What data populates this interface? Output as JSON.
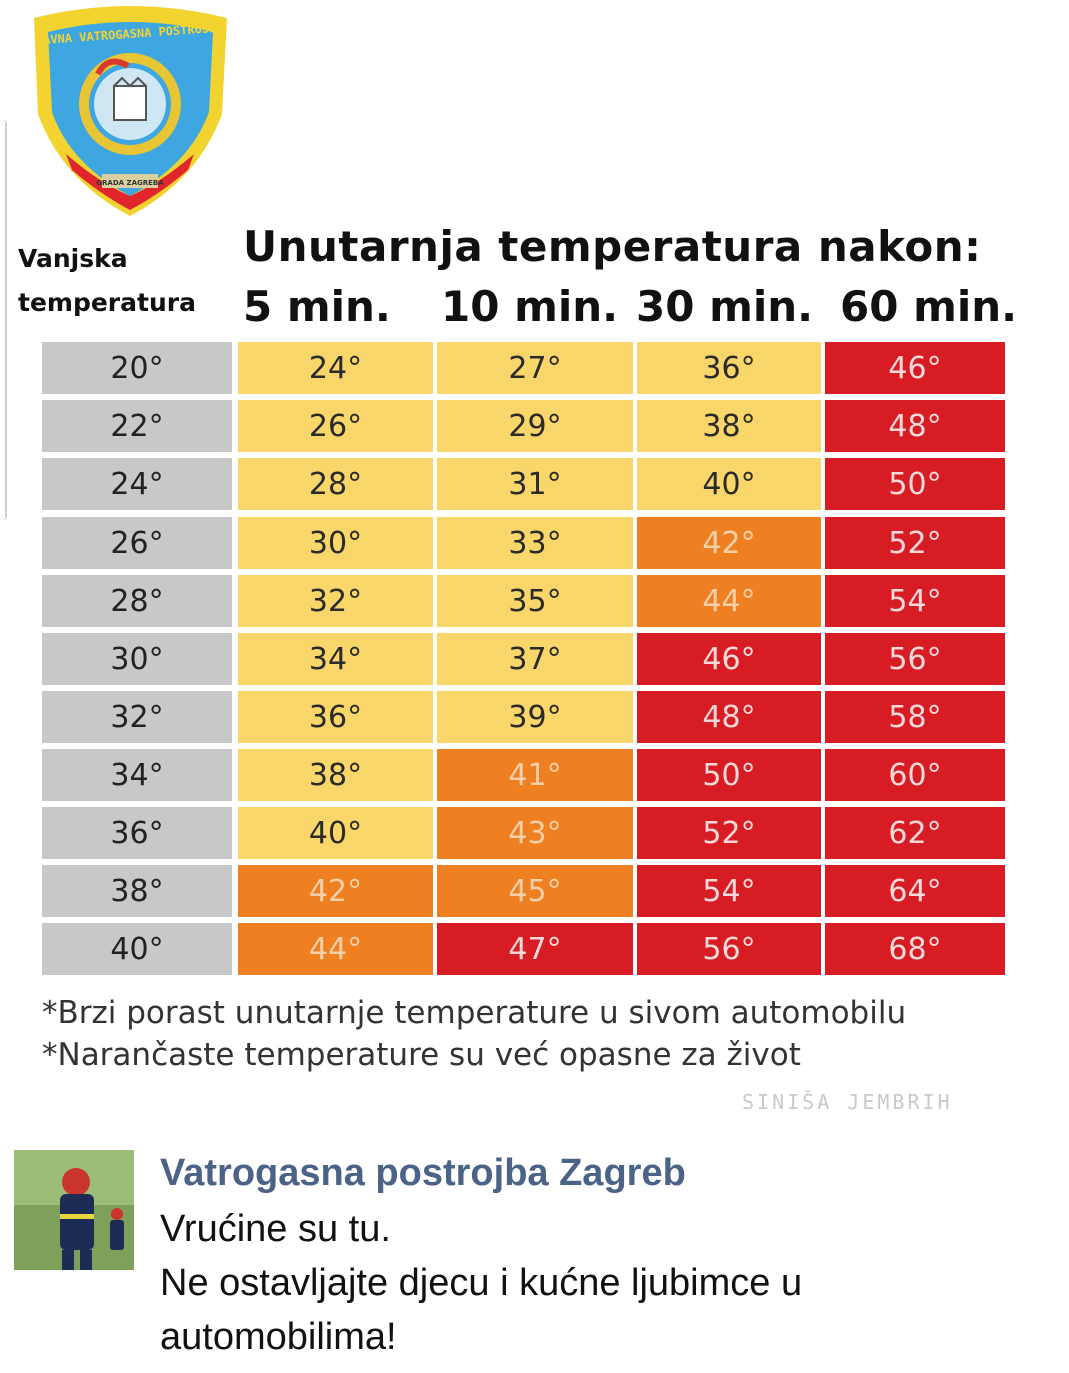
{
  "badge": {
    "top_text": "JAVNA VATROGASNA POSTROJBA",
    "bottom_text": "GRADA ZAGREBA",
    "colors": {
      "outer": "#f2d330",
      "inner": "#3ea6e0",
      "bottom": "#e0262c"
    }
  },
  "header": {
    "outside_line1": "Vanjska",
    "outside_line2": "temperatura",
    "inside_title": "Unutarnja temperatura nakon:",
    "columns": [
      "5 min.",
      "10 min.",
      "30 min.",
      "60 min."
    ]
  },
  "table": {
    "rows": [
      {
        "outside": "20°",
        "values": [
          "24°",
          "27°",
          "36°",
          "46°"
        ],
        "levels": [
          "y",
          "y",
          "y",
          "r"
        ]
      },
      {
        "outside": "22°",
        "values": [
          "26°",
          "29°",
          "38°",
          "48°"
        ],
        "levels": [
          "y",
          "y",
          "y",
          "r"
        ]
      },
      {
        "outside": "24°",
        "values": [
          "28°",
          "31°",
          "40°",
          "50°"
        ],
        "levels": [
          "y",
          "y",
          "y",
          "r"
        ]
      },
      {
        "outside": "26°",
        "values": [
          "30°",
          "33°",
          "42°",
          "52°"
        ],
        "levels": [
          "y",
          "y",
          "o",
          "r"
        ]
      },
      {
        "outside": "28°",
        "values": [
          "32°",
          "35°",
          "44°",
          "54°"
        ],
        "levels": [
          "y",
          "y",
          "o",
          "r"
        ]
      },
      {
        "outside": "30°",
        "values": [
          "34°",
          "37°",
          "46°",
          "56°"
        ],
        "levels": [
          "y",
          "y",
          "r",
          "r"
        ]
      },
      {
        "outside": "32°",
        "values": [
          "36°",
          "39°",
          "48°",
          "58°"
        ],
        "levels": [
          "y",
          "y",
          "r",
          "r"
        ]
      },
      {
        "outside": "34°",
        "values": [
          "38°",
          "41°",
          "50°",
          "60°"
        ],
        "levels": [
          "y",
          "o",
          "r",
          "r"
        ]
      },
      {
        "outside": "36°",
        "values": [
          "40°",
          "43°",
          "52°",
          "62°"
        ],
        "levels": [
          "y",
          "o",
          "r",
          "r"
        ]
      },
      {
        "outside": "38°",
        "values": [
          "42°",
          "45°",
          "54°",
          "64°"
        ],
        "levels": [
          "o",
          "o",
          "r",
          "r"
        ]
      },
      {
        "outside": "40°",
        "values": [
          "44°",
          "47°",
          "56°",
          "68°"
        ],
        "levels": [
          "o",
          "r",
          "r",
          "r"
        ]
      }
    ],
    "colors": {
      "gray": "#c8c8c8",
      "yellow": "#f9d66a",
      "orange": "#ee8022",
      "red": "#d71c24"
    }
  },
  "notes": {
    "line1": "*Brzi porast unutarnje temperature u sivom automobilu",
    "line2": "*Narančaste temperature su već opasne za život"
  },
  "signature": "SINIŠA JEMBRIH",
  "post": {
    "author": "Vatrogasna postrojba Zagreb",
    "line1": "Vrućine su tu.",
    "line2": "Ne ostavljajte djecu i kućne ljubimce u",
    "line3": "automobilima!"
  }
}
